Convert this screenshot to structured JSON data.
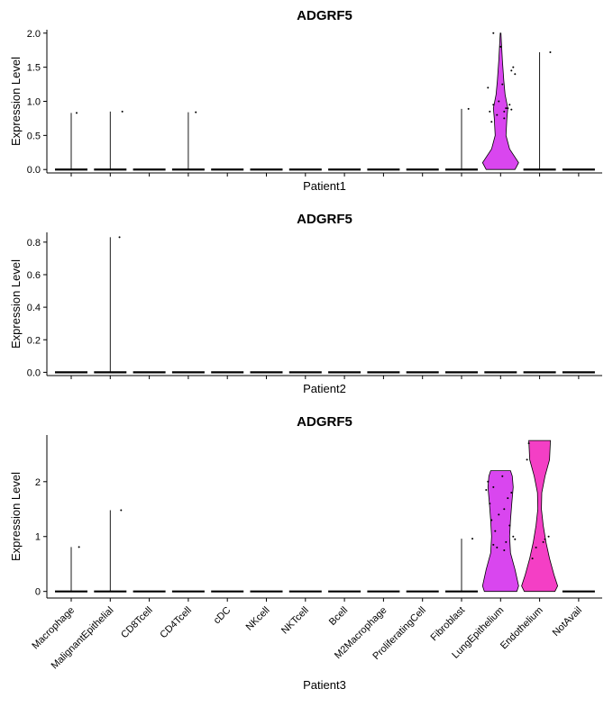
{
  "chart_data": {
    "type": "violin",
    "categories": [
      "Macrophage",
      "MalignantEpithelial",
      "CD8Tcell",
      "CD4Tcell",
      "cDC",
      "NKcell",
      "NKTcell",
      "Bcell",
      "M2Macrophage",
      "ProliferatingCell",
      "Fibroblast",
      "LungEpithelium",
      "Endothelium",
      "NotAvail"
    ],
    "ylabel": "Expression Level",
    "colors": {
      "LungEpithelium": "#d946ef",
      "Endothelium": "#f43fc5",
      "line": "#000000"
    },
    "panels": [
      {
        "title": "ADGRF5",
        "xlabel": "Patient1",
        "ylim": [
          -0.05,
          2.05
        ],
        "yticks": [
          "0.0",
          "0.5",
          "1.0",
          "1.5",
          "2.0"
        ],
        "ytick_values": [
          0,
          0.5,
          1.0,
          1.5,
          2.0
        ],
        "show_category_labels": false,
        "violins": [
          {
            "category": "Macrophage",
            "max": 0.83,
            "filled": false
          },
          {
            "category": "MalignantEpithelial",
            "max": 0.85,
            "filled": false
          },
          {
            "category": "CD8Tcell",
            "max": 0,
            "filled": false
          },
          {
            "category": "CD4Tcell",
            "max": 0.84,
            "filled": false
          },
          {
            "category": "cDC",
            "max": 0,
            "filled": false
          },
          {
            "category": "NKcell",
            "max": 0,
            "filled": false
          },
          {
            "category": "NKTcell",
            "max": 0,
            "filled": false
          },
          {
            "category": "Bcell",
            "max": 0,
            "filled": false
          },
          {
            "category": "M2Macrophage",
            "max": 0,
            "filled": false
          },
          {
            "category": "ProliferatingCell",
            "max": 0,
            "filled": false
          },
          {
            "category": "Fibroblast",
            "max": 0.89,
            "filled": false
          },
          {
            "category": "LungEpithelium",
            "max": 2.0,
            "filled": true,
            "density": [
              [
                0,
                0.8
              ],
              [
                0.1,
                1
              ],
              [
                0.3,
                0.5
              ],
              [
                0.5,
                0.3
              ],
              [
                0.75,
                0.35
              ],
              [
                0.9,
                0.4
              ],
              [
                1.1,
                0.25
              ],
              [
                1.3,
                0.18
              ],
              [
                1.6,
                0.1
              ],
              [
                1.85,
                0.05
              ],
              [
                2.0,
                0.02
              ]
            ],
            "points": [
              [
                0.15,
                0.9
              ],
              [
                -0.2,
                0.95
              ],
              [
                0.1,
                0.85
              ],
              [
                0.3,
                1.45
              ],
              [
                -0.35,
                1.2
              ],
              [
                0.05,
                1.25
              ],
              [
                -0.1,
                0.8
              ],
              [
                0.25,
                0.95
              ],
              [
                -0.3,
                0.85
              ],
              [
                0.35,
                1.5
              ],
              [
                0.2,
                0.9
              ],
              [
                -0.05,
                1.0
              ],
              [
                0.1,
                0.75
              ],
              [
                -0.25,
                0.7
              ],
              [
                0.3,
                0.88
              ],
              [
                0.0,
                1.8
              ],
              [
                -0.2,
                2.0
              ],
              [
                0.4,
                1.4
              ]
            ]
          },
          {
            "category": "Endothelium",
            "max": 1.72,
            "filled": false
          },
          {
            "category": "NotAvail",
            "max": 0,
            "filled": false
          }
        ]
      },
      {
        "title": "ADGRF5",
        "xlabel": "Patient2",
        "ylim": [
          -0.02,
          0.86
        ],
        "yticks": [
          "0.0",
          "0.2",
          "0.4",
          "0.6",
          "0.8"
        ],
        "ytick_values": [
          0,
          0.2,
          0.4,
          0.6,
          0.8
        ],
        "show_category_labels": false,
        "violins": [
          {
            "category": "Macrophage",
            "max": 0,
            "filled": false
          },
          {
            "category": "MalignantEpithelial",
            "max": 0.83,
            "filled": false
          },
          {
            "category": "CD8Tcell",
            "max": 0,
            "filled": false
          },
          {
            "category": "CD4Tcell",
            "max": 0,
            "filled": false
          },
          {
            "category": "cDC",
            "max": 0,
            "filled": false
          },
          {
            "category": "NKcell",
            "max": 0,
            "filled": false
          },
          {
            "category": "NKTcell",
            "max": 0,
            "filled": false
          },
          {
            "category": "Bcell",
            "max": 0,
            "filled": false
          },
          {
            "category": "M2Macrophage",
            "max": 0,
            "filled": false
          },
          {
            "category": "ProliferatingCell",
            "max": 0,
            "filled": false
          },
          {
            "category": "Fibroblast",
            "max": 0,
            "filled": false
          },
          {
            "category": "LungEpithelium",
            "max": 0,
            "filled": false
          },
          {
            "category": "Endothelium",
            "max": 0,
            "filled": false
          },
          {
            "category": "NotAvail",
            "max": 0,
            "filled": false
          }
        ]
      },
      {
        "title": "ADGRF5",
        "xlabel": "Patient3",
        "ylim": [
          -0.12,
          2.85
        ],
        "yticks": [
          "0",
          "1",
          "2"
        ],
        "ytick_values": [
          0,
          1,
          2
        ],
        "show_category_labels": true,
        "violins": [
          {
            "category": "Macrophage",
            "max": 0.81,
            "filled": false
          },
          {
            "category": "MalignantEpithelial",
            "max": 1.48,
            "filled": false
          },
          {
            "category": "CD8Tcell",
            "max": 0,
            "filled": false
          },
          {
            "category": "CD4Tcell",
            "max": 0,
            "filled": false
          },
          {
            "category": "cDC",
            "max": 0,
            "filled": false
          },
          {
            "category": "NKcell",
            "max": 0,
            "filled": false
          },
          {
            "category": "NKTcell",
            "max": 0,
            "filled": false
          },
          {
            "category": "Bcell",
            "max": 0,
            "filled": false
          },
          {
            "category": "M2Macrophage",
            "max": 0,
            "filled": false
          },
          {
            "category": "ProliferatingCell",
            "max": 0,
            "filled": false
          },
          {
            "category": "Fibroblast",
            "max": 0.96,
            "filled": false
          },
          {
            "category": "LungEpithelium",
            "max": 2.2,
            "filled": true,
            "density": [
              [
                0,
                0.9
              ],
              [
                0.1,
                1
              ],
              [
                0.4,
                0.8
              ],
              [
                0.7,
                0.55
              ],
              [
                1.0,
                0.5
              ],
              [
                1.3,
                0.55
              ],
              [
                1.6,
                0.62
              ],
              [
                1.9,
                0.7
              ],
              [
                2.1,
                0.65
              ],
              [
                2.2,
                0.55
              ]
            ],
            "points": [
              [
                -0.2,
                1.9
              ],
              [
                0.1,
                1.5
              ],
              [
                -0.35,
                2.0
              ],
              [
                0.25,
                1.2
              ],
              [
                -0.1,
                0.8
              ],
              [
                0.3,
                1.8
              ],
              [
                -0.25,
                1.3
              ],
              [
                0.15,
                0.9
              ],
              [
                -0.3,
                1.6
              ],
              [
                0.05,
                2.1
              ],
              [
                0.35,
                1.0
              ],
              [
                -0.15,
                1.1
              ],
              [
                0.2,
                1.7
              ],
              [
                -0.05,
                1.4
              ],
              [
                0.4,
                0.95
              ],
              [
                -0.4,
                1.85
              ],
              [
                0.1,
                0.75
              ],
              [
                -0.2,
                0.85
              ]
            ]
          },
          {
            "category": "Endothelium",
            "max": 2.75,
            "filled": true,
            "density": [
              [
                0,
                0.85
              ],
              [
                0.1,
                1
              ],
              [
                0.3,
                0.8
              ],
              [
                0.6,
                0.55
              ],
              [
                0.9,
                0.35
              ],
              [
                1.2,
                0.2
              ],
              [
                1.5,
                0.1
              ],
              [
                1.8,
                0.12
              ],
              [
                2.1,
                0.3
              ],
              [
                2.4,
                0.55
              ],
              [
                2.75,
                0.6
              ]
            ],
            "points": [
              [
                -0.3,
                2.7
              ],
              [
                -0.35,
                2.4
              ],
              [
                0.1,
                0.9
              ],
              [
                -0.1,
                0.8
              ],
              [
                0.25,
                1.0
              ],
              [
                -0.2,
                0.6
              ],
              [
                0.15,
                0.95
              ]
            ]
          },
          {
            "category": "NotAvail",
            "max": 0,
            "filled": false
          }
        ]
      }
    ]
  }
}
